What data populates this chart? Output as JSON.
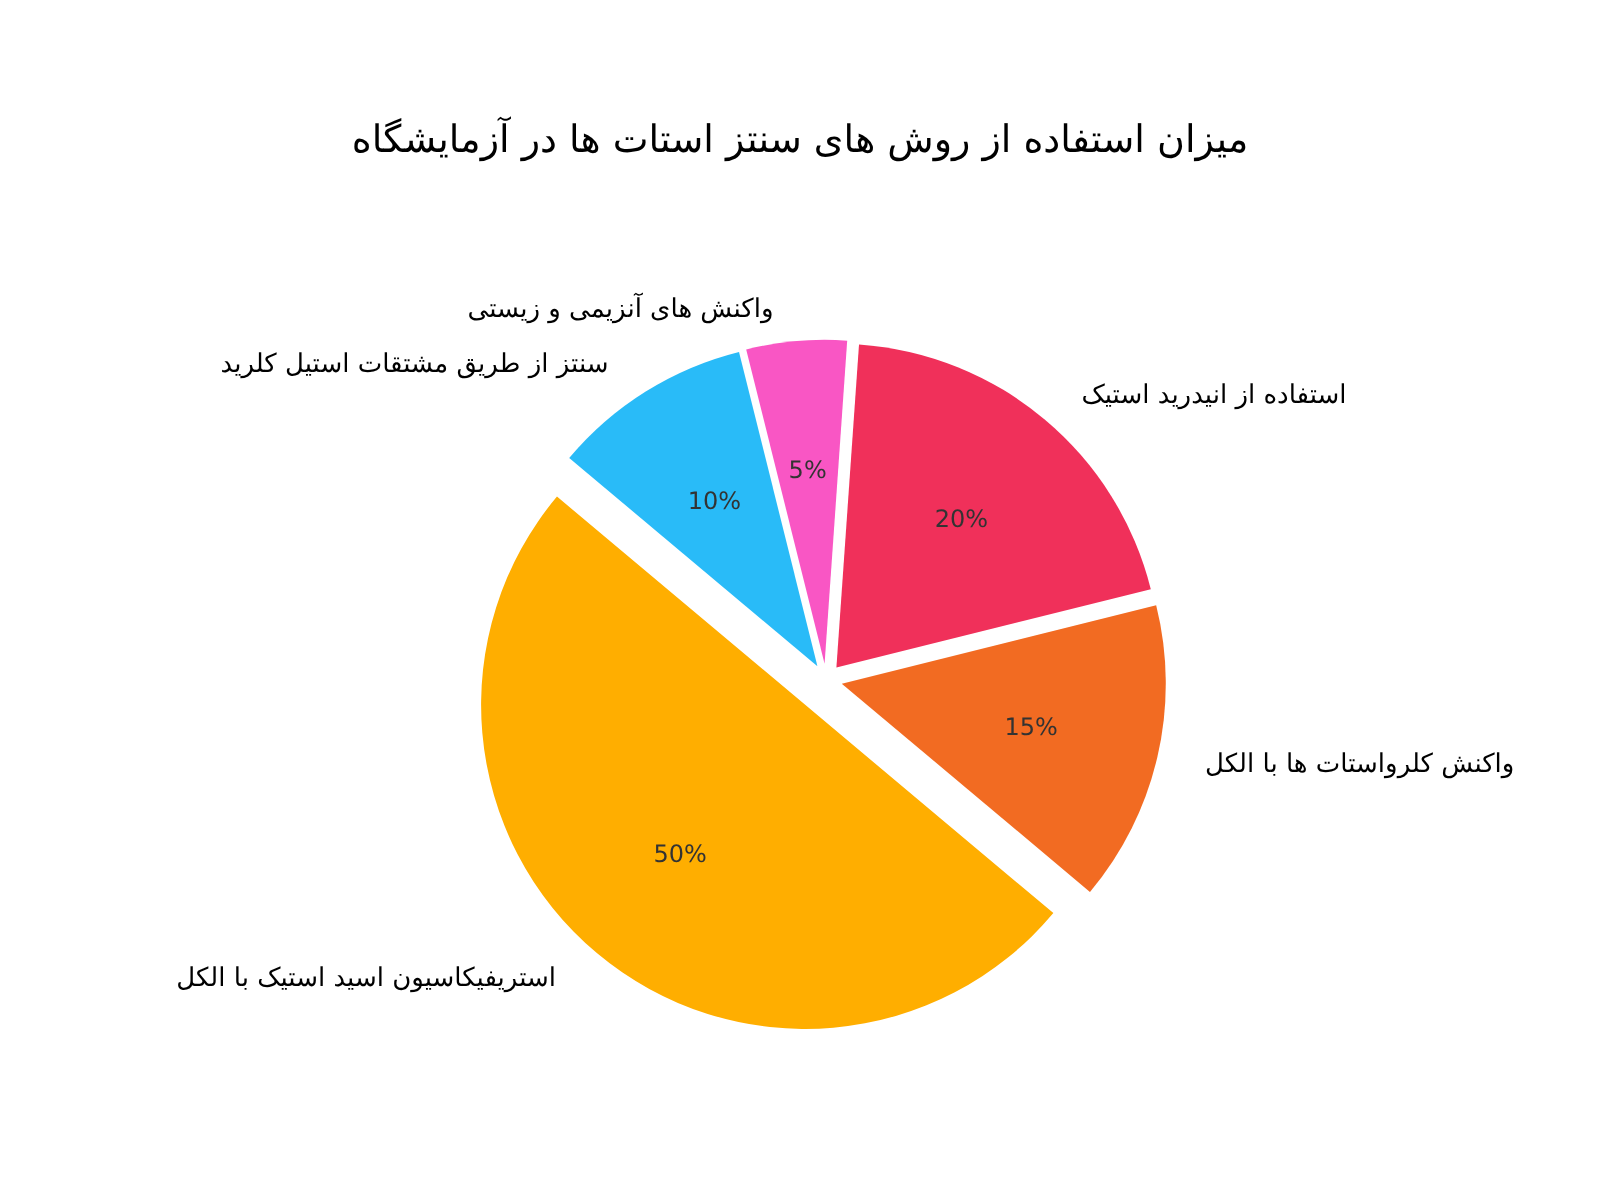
{
  "chart_data": {
    "type": "pie",
    "title": "میزان استفاده از روش های سنتز استات ها در آزمایشگاه",
    "categories": [
      "استریفیکاسیون اسید استیک با الکل",
      "واکنش کلرواستات ها با الکل",
      "استفاده از انیدرید استیک",
      "واکنش های آنزیمی و زیستی",
      "سنتز از طریق مشتقات استیل کلرید"
    ],
    "values": [
      50,
      15,
      20,
      5,
      10
    ],
    "colors": [
      "#ffae00",
      "#f26b22",
      "#f0305a",
      "#f956c4",
      "#29bbf8"
    ],
    "value_labels": [
      "50%",
      "15%",
      "20%",
      "5%",
      "10%"
    ]
  }
}
